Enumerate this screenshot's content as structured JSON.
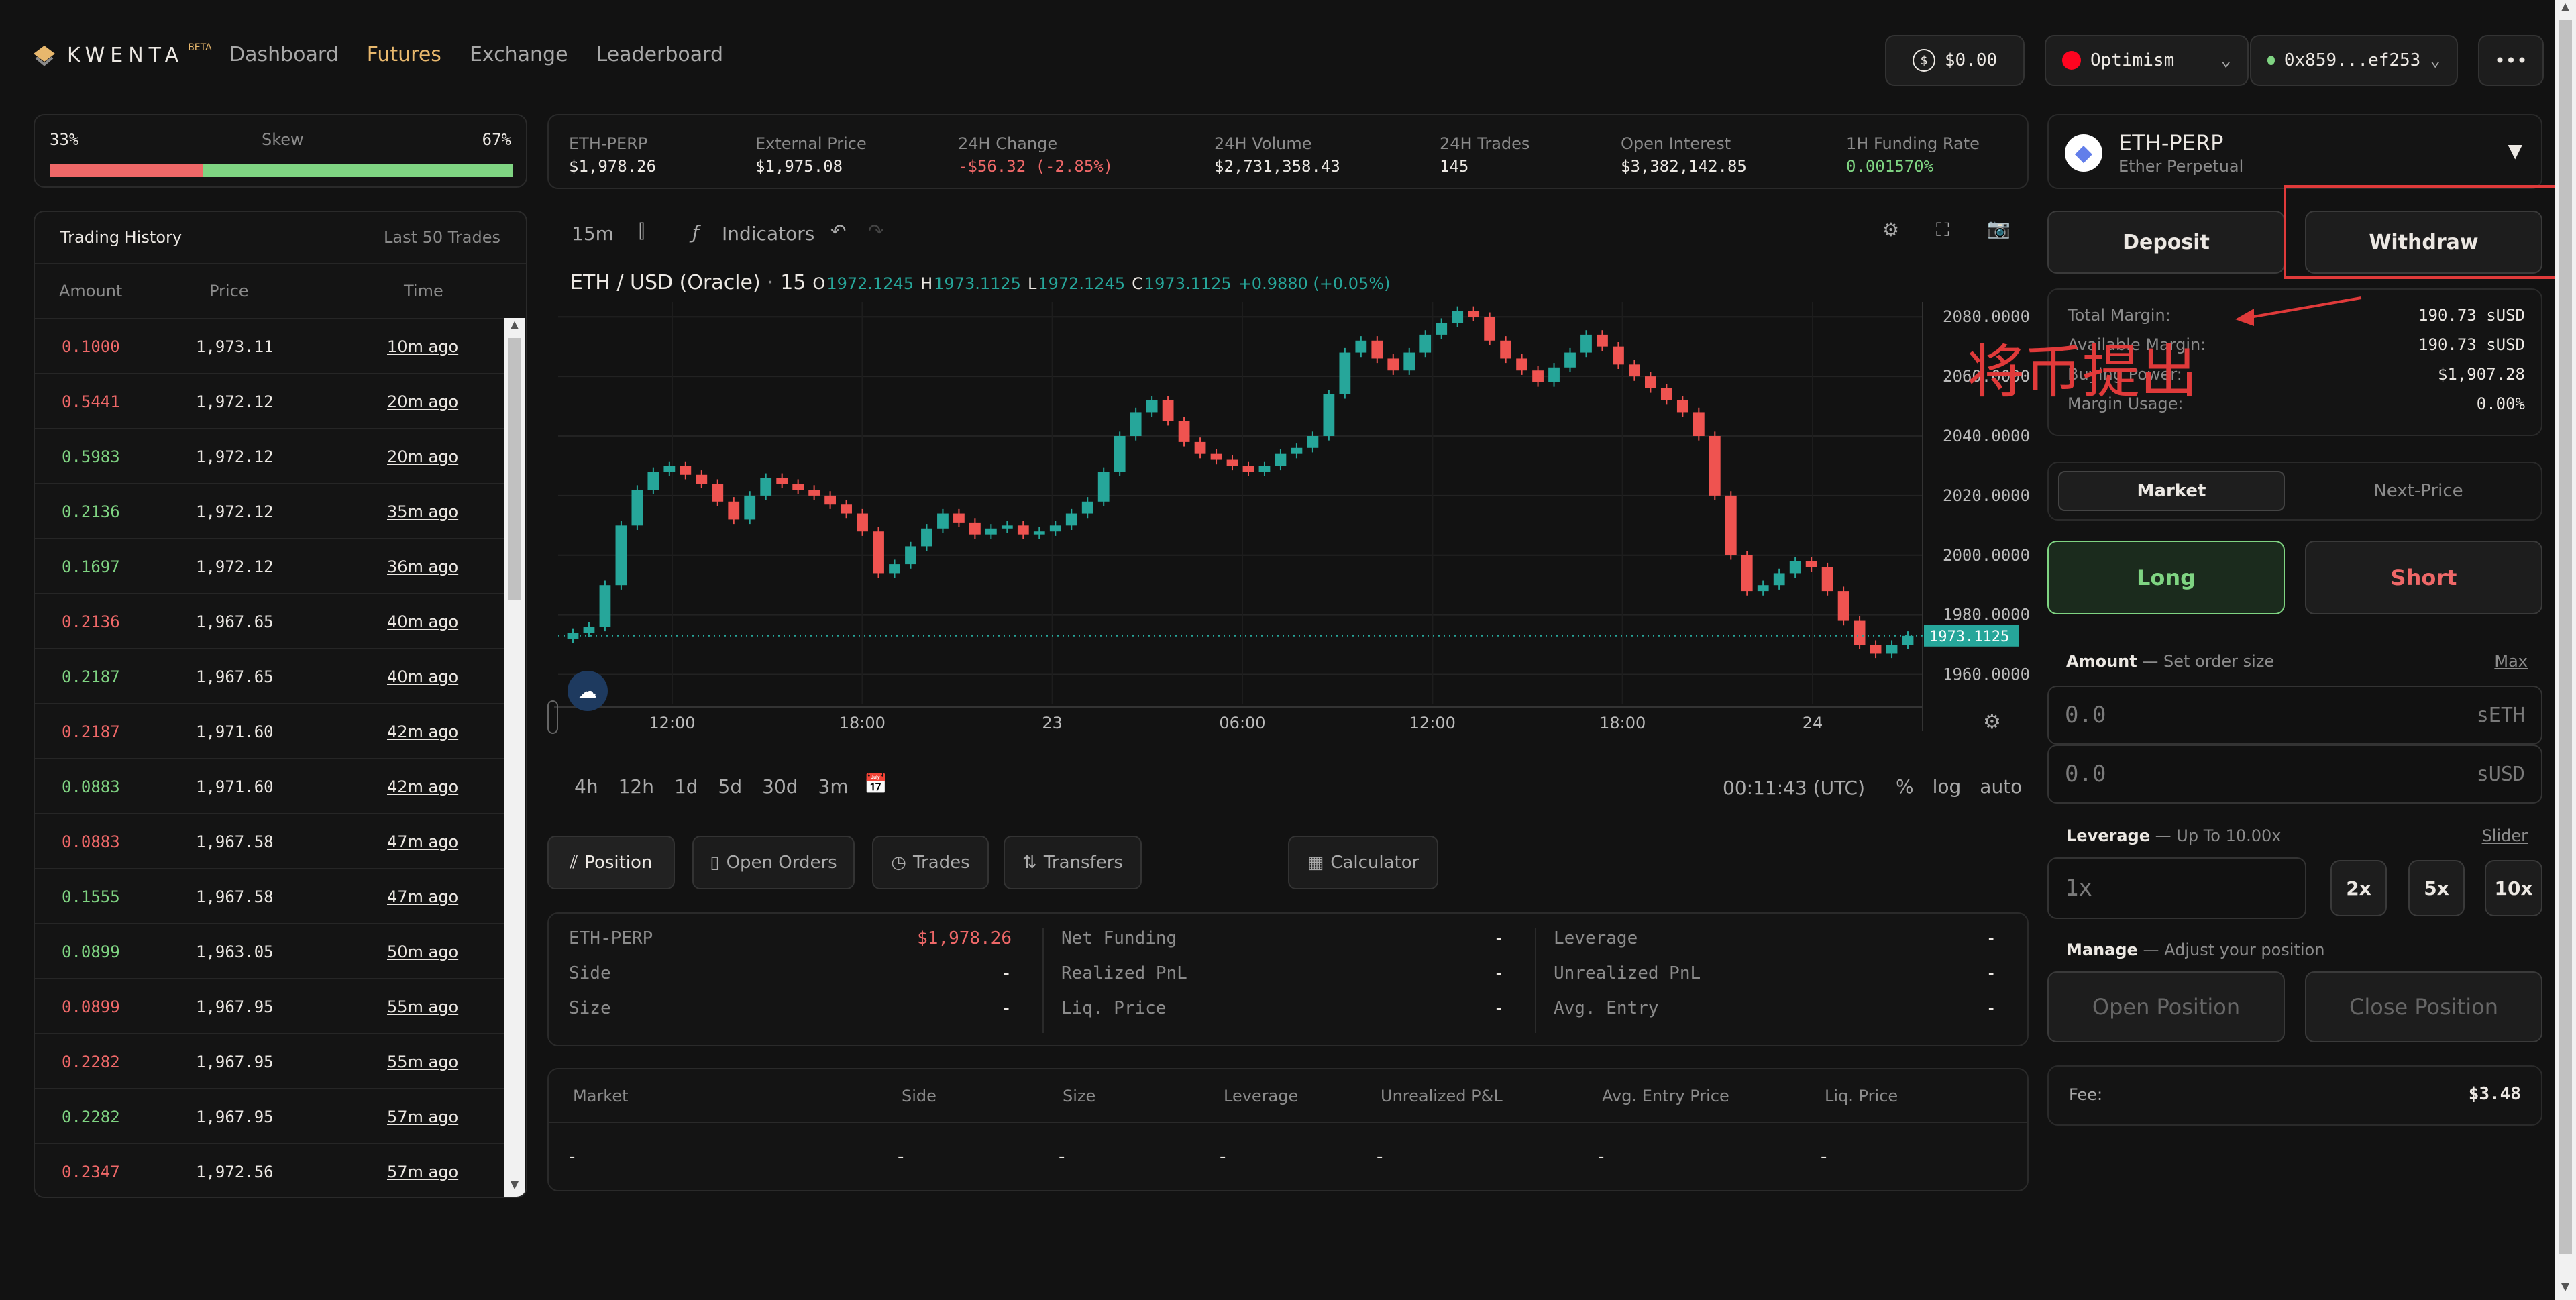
{
  "header": {
    "logo": "KWENTA",
    "logo_badge": "BETA",
    "nav": [
      "Dashboard",
      "Futures",
      "Exchange",
      "Leaderboard"
    ],
    "balance": "$0.00",
    "network": "Optimism",
    "wallet": "0x859...ef253",
    "more": "•••"
  },
  "skew": {
    "left": "33%",
    "label": "Skew",
    "right": "67%",
    "long_fraction": 0.33
  },
  "trading_history": {
    "title": "Trading History",
    "subtitle": "Last 50 Trades",
    "columns": [
      "Amount",
      "Price",
      "Time"
    ],
    "rows": [
      {
        "amount": "0.1000",
        "price": "1,973.11",
        "time": "10m ago",
        "side": "red"
      },
      {
        "amount": "0.5441",
        "price": "1,972.12",
        "time": "20m ago",
        "side": "red"
      },
      {
        "amount": "0.5983",
        "price": "1,972.12",
        "time": "20m ago",
        "side": "green"
      },
      {
        "amount": "0.2136",
        "price": "1,972.12",
        "time": "35m ago",
        "side": "green"
      },
      {
        "amount": "0.1697",
        "price": "1,972.12",
        "time": "36m ago",
        "side": "green"
      },
      {
        "amount": "0.2136",
        "price": "1,967.65",
        "time": "40m ago",
        "side": "red"
      },
      {
        "amount": "0.2187",
        "price": "1,967.65",
        "time": "40m ago",
        "side": "green"
      },
      {
        "amount": "0.2187",
        "price": "1,971.60",
        "time": "42m ago",
        "side": "red"
      },
      {
        "amount": "0.0883",
        "price": "1,971.60",
        "time": "42m ago",
        "side": "green"
      },
      {
        "amount": "0.0883",
        "price": "1,967.58",
        "time": "47m ago",
        "side": "red"
      },
      {
        "amount": "0.1555",
        "price": "1,967.58",
        "time": "47m ago",
        "side": "green"
      },
      {
        "amount": "0.0899",
        "price": "1,963.05",
        "time": "50m ago",
        "side": "green"
      },
      {
        "amount": "0.0899",
        "price": "1,967.95",
        "time": "55m ago",
        "side": "red"
      },
      {
        "amount": "0.2282",
        "price": "1,967.95",
        "time": "55m ago",
        "side": "red"
      },
      {
        "amount": "0.2282",
        "price": "1,967.95",
        "time": "57m ago",
        "side": "green"
      },
      {
        "amount": "0.2347",
        "price": "1,972.56",
        "time": "57m ago",
        "side": "red"
      }
    ]
  },
  "market_info": [
    {
      "label": "ETH-PERP",
      "value": "$1,978.26",
      "tone": "white"
    },
    {
      "label": "External Price",
      "value": "$1,975.08",
      "tone": "white"
    },
    {
      "label": "24H Change",
      "value": "-$56.32 (-2.85%)",
      "tone": "red"
    },
    {
      "label": "24H Volume",
      "value": "$2,731,358.43",
      "tone": "white"
    },
    {
      "label": "24H Trades",
      "value": "145",
      "tone": "white"
    },
    {
      "label": "Open Interest",
      "value": "$3,382,142.85",
      "tone": "white"
    },
    {
      "label": "1H Funding Rate",
      "value": "0.001570%",
      "tone": "green"
    }
  ],
  "chart_toolbar": {
    "interval": "15m",
    "indicators": "Indicators"
  },
  "chart_legend": {
    "symbol": "ETH / USD (Oracle)",
    "interval": "15",
    "o": "1972.1245",
    "h": "1973.1125",
    "l": "1972.1245",
    "c": "1973.1125",
    "change": "+0.9880 (+0.05%)"
  },
  "chart_data": {
    "type": "candlestick",
    "y_ticks": [
      "2080.0000",
      "2060.0000",
      "2040.0000",
      "2020.0000",
      "2000.0000",
      "1980.0000",
      "1960.0000"
    ],
    "x_ticks": [
      "12:00",
      "18:00",
      "23",
      "06:00",
      "12:00",
      "18:00",
      "24"
    ],
    "ylim": [
      1950,
      2085
    ],
    "last_price_label": "1973.1125",
    "closes": [
      1974,
      1976,
      1990,
      2010,
      2022,
      2028,
      2030,
      2027,
      2024,
      2018,
      2012,
      2020,
      2026,
      2024,
      2022,
      2020,
      2017,
      2014,
      2008,
      1994,
      1997,
      2003,
      2009,
      2014,
      2011,
      2007,
      2009,
      2010,
      2007,
      2008,
      2010,
      2014,
      2018,
      2028,
      2040,
      2048,
      2052,
      2045,
      2038,
      2034,
      2032,
      2030,
      2028,
      2030,
      2034,
      2036,
      2040,
      2054,
      2068,
      2072,
      2066,
      2062,
      2068,
      2074,
      2078,
      2082,
      2080,
      2072,
      2066,
      2062,
      2058,
      2063,
      2068,
      2074,
      2070,
      2064,
      2060,
      2056,
      2052,
      2048,
      2040,
      2020,
      2000,
      1988,
      1990,
      1994,
      1998,
      1996,
      1988,
      1978,
      1970,
      1967,
      1970,
      1973
    ],
    "time_range_buttons": [
      "4h",
      "12h",
      "1d",
      "5d",
      "30d",
      "3m"
    ],
    "clock": "00:11:43 (UTC)",
    "scale_buttons": [
      "%",
      "log",
      "auto"
    ]
  },
  "position_tabs": [
    "Position",
    "Open Orders",
    "Trades",
    "Transfers"
  ],
  "calculator": "Calculator",
  "position_grid": [
    [
      {
        "label": "ETH-PERP",
        "value": "$1,978.26",
        "tone": "red"
      },
      {
        "label": "Net Funding",
        "value": "-"
      },
      {
        "label": "Leverage",
        "value": "-"
      }
    ],
    [
      {
        "label": "Side",
        "value": "-"
      },
      {
        "label": "Realized PnL",
        "value": "-"
      },
      {
        "label": "Unrealized PnL",
        "value": "-"
      }
    ],
    [
      {
        "label": "Size",
        "value": "-"
      },
      {
        "label": "Liq. Price",
        "value": "-"
      },
      {
        "label": "Avg. Entry",
        "value": "-"
      }
    ]
  ],
  "positions_table": {
    "columns": [
      "Market",
      "Side",
      "Size",
      "Leverage",
      "Unrealized P&L",
      "Avg. Entry Price",
      "Liq. Price"
    ],
    "row": [
      "-",
      "-",
      "-",
      "-",
      "-",
      "-",
      "-"
    ]
  },
  "market_select": {
    "name": "ETH-PERP",
    "sub": "Ether Perpetual"
  },
  "actions": {
    "deposit": "Deposit",
    "withdraw": "Withdraw"
  },
  "margin": [
    {
      "label": "Total Margin:",
      "value": "190.73 sUSD"
    },
    {
      "label": "Available Margin:",
      "value": "190.73 sUSD"
    },
    {
      "label": "Buying Power:",
      "value": "$1,907.28"
    },
    {
      "label": "Margin Usage:",
      "value": "0.00%"
    }
  ],
  "annotation": "将币提出",
  "order_type": [
    "Market",
    "Next-Price"
  ],
  "sides": {
    "long": "Long",
    "short": "Short"
  },
  "amount": {
    "label": "Amount",
    "hint": "Set order size",
    "max": "Max",
    "eth_placeholder": "0.0",
    "eth_unit": "sETH",
    "usd_placeholder": "0.0",
    "usd_unit": "sUSD"
  },
  "leverage": {
    "label": "Leverage",
    "hint": "Up To 10.00x",
    "slider": "Slider",
    "placeholder": "1x",
    "presets": [
      "2x",
      "5x",
      "10x"
    ]
  },
  "manage": {
    "label": "Manage",
    "hint": "Adjust your position",
    "open": "Open Position",
    "close": "Close Position"
  },
  "fee": {
    "label": "Fee:",
    "value": "$3.48"
  },
  "colors": {
    "green": "#7FD482",
    "red": "#EF6868",
    "gold": "#E8B86D",
    "teal": "#26A69A",
    "annotation": "#E03A3A"
  }
}
